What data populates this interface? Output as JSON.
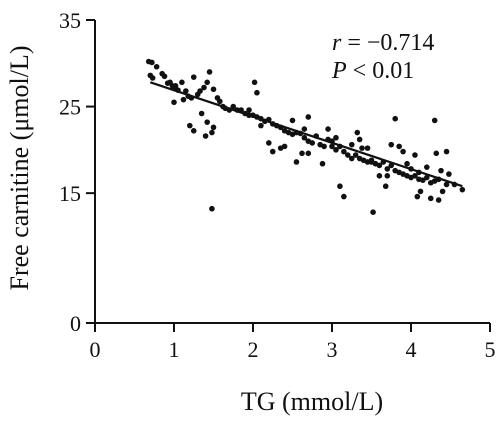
{
  "chart_data": {
    "type": "scatter",
    "title": "",
    "xlabel": "TG (mmol/L)",
    "ylabel": "Free carnitine (μmol/L)",
    "xlim": [
      0,
      5
    ],
    "ylim": [
      0,
      35
    ],
    "x_ticks": [
      "0",
      "1",
      "2",
      "3",
      "4",
      "5"
    ],
    "y_ticks": [
      "0",
      "15",
      "25",
      "35"
    ],
    "y_tick_values": [
      0,
      15,
      25,
      35
    ],
    "x_tick_values": [
      0,
      1,
      2,
      3,
      4,
      5
    ],
    "grid": false,
    "legend": "none",
    "annotations": {
      "r_symbol": "r",
      "r_text": " = −0.714",
      "p_symbol": "P",
      "p_text": " < 0.01"
    },
    "regression_line": {
      "x": [
        0.7,
        4.65
      ],
      "y": [
        27.8,
        15.8
      ]
    },
    "series": [
      {
        "points": [
          [
            0.68,
            30.2
          ],
          [
            0.72,
            30.1
          ],
          [
            0.78,
            29.6
          ],
          [
            0.7,
            28.6
          ],
          [
            0.73,
            28.3
          ],
          [
            0.85,
            28.8
          ],
          [
            0.88,
            28.5
          ],
          [
            0.92,
            27.7
          ],
          [
            0.95,
            27.8
          ],
          [
            0.98,
            27.4
          ],
          [
            1.0,
            27.1
          ],
          [
            1.02,
            27.4
          ],
          [
            1.05,
            26.9
          ],
          [
            1.1,
            27.8
          ],
          [
            1.15,
            26.8
          ],
          [
            1.18,
            26.2
          ],
          [
            1.22,
            26.0
          ],
          [
            1.25,
            28.4
          ],
          [
            1.3,
            26.4
          ],
          [
            1.33,
            26.8
          ],
          [
            1.38,
            27.2
          ],
          [
            1.42,
            27.8
          ],
          [
            1.45,
            29.0
          ],
          [
            1.5,
            27.0
          ],
          [
            1.55,
            26.0
          ],
          [
            1.58,
            25.6
          ],
          [
            1.62,
            25.0
          ],
          [
            1.65,
            24.8
          ],
          [
            1.7,
            24.6
          ],
          [
            1.75,
            25.0
          ],
          [
            1.8,
            24.6
          ],
          [
            1.85,
            24.6
          ],
          [
            1.9,
            24.2
          ],
          [
            1.95,
            24.0
          ],
          [
            2.0,
            24.0
          ],
          [
            2.02,
            27.8
          ],
          [
            2.05,
            26.6
          ],
          [
            2.1,
            23.6
          ],
          [
            2.15,
            23.3
          ],
          [
            2.2,
            23.5
          ],
          [
            2.25,
            23.0
          ],
          [
            2.3,
            22.8
          ],
          [
            2.35,
            22.6
          ],
          [
            2.4,
            22.2
          ],
          [
            2.45,
            22.0
          ],
          [
            2.5,
            21.8
          ],
          [
            2.55,
            22.0
          ],
          [
            2.6,
            21.9
          ],
          [
            2.62,
            19.6
          ],
          [
            2.65,
            21.4
          ],
          [
            2.7,
            21.0
          ],
          [
            2.75,
            20.8
          ],
          [
            2.8,
            21.6
          ],
          [
            2.85,
            20.6
          ],
          [
            2.9,
            20.4
          ],
          [
            2.95,
            21.2
          ],
          [
            3.0,
            20.4
          ],
          [
            3.05,
            20.0
          ],
          [
            3.1,
            20.4
          ],
          [
            3.15,
            19.8
          ],
          [
            3.2,
            19.4
          ],
          [
            3.25,
            19.0
          ],
          [
            3.3,
            19.4
          ],
          [
            3.35,
            19.0
          ],
          [
            3.4,
            18.8
          ],
          [
            3.45,
            18.6
          ],
          [
            3.5,
            18.8
          ],
          [
            3.55,
            18.4
          ],
          [
            3.6,
            18.2
          ],
          [
            3.65,
            18.6
          ],
          [
            3.7,
            17.8
          ],
          [
            3.75,
            18.2
          ],
          [
            3.8,
            17.6
          ],
          [
            3.85,
            17.4
          ],
          [
            3.9,
            17.2
          ],
          [
            3.95,
            17.0
          ],
          [
            4.0,
            16.8
          ],
          [
            4.05,
            17.0
          ],
          [
            4.1,
            16.6
          ],
          [
            4.15,
            16.5
          ],
          [
            4.2,
            16.8
          ],
          [
            4.25,
            16.2
          ],
          [
            4.3,
            16.4
          ],
          [
            4.35,
            16.6
          ],
          [
            4.45,
            16.0
          ],
          [
            4.55,
            16.0
          ],
          [
            4.65,
            15.4
          ],
          [
            1.0,
            25.5
          ],
          [
            1.12,
            25.8
          ],
          [
            1.35,
            24.2
          ],
          [
            1.42,
            23.2
          ],
          [
            1.48,
            22.0
          ],
          [
            1.5,
            22.6
          ],
          [
            1.4,
            21.6
          ],
          [
            1.2,
            22.8
          ],
          [
            1.25,
            22.2
          ],
          [
            1.48,
            13.2
          ],
          [
            1.95,
            24.6
          ],
          [
            2.05,
            23.8
          ],
          [
            2.1,
            22.8
          ],
          [
            2.2,
            20.8
          ],
          [
            2.35,
            20.2
          ],
          [
            2.4,
            20.4
          ],
          [
            2.25,
            19.8
          ],
          [
            2.5,
            23.4
          ],
          [
            2.55,
            18.6
          ],
          [
            2.7,
            23.8
          ],
          [
            2.65,
            22.4
          ],
          [
            2.7,
            19.6
          ],
          [
            2.88,
            18.4
          ],
          [
            2.95,
            22.4
          ],
          [
            3.0,
            21.0
          ],
          [
            3.05,
            21.4
          ],
          [
            3.1,
            15.8
          ],
          [
            3.15,
            14.6
          ],
          [
            3.25,
            20.6
          ],
          [
            3.35,
            21.2
          ],
          [
            3.32,
            22.0
          ],
          [
            3.38,
            20.2
          ],
          [
            3.45,
            20.2
          ],
          [
            3.5,
            18.6
          ],
          [
            3.52,
            12.8
          ],
          [
            3.6,
            17.0
          ],
          [
            3.68,
            15.8
          ],
          [
            3.75,
            20.6
          ],
          [
            3.8,
            23.6
          ],
          [
            3.85,
            20.4
          ],
          [
            3.9,
            19.8
          ],
          [
            3.95,
            18.4
          ],
          [
            4.0,
            17.8
          ],
          [
            4.05,
            19.4
          ],
          [
            4.08,
            14.6
          ],
          [
            4.12,
            15.2
          ],
          [
            4.2,
            18.0
          ],
          [
            4.25,
            14.4
          ],
          [
            4.3,
            23.4
          ],
          [
            4.32,
            19.6
          ],
          [
            4.35,
            14.2
          ],
          [
            4.4,
            15.2
          ],
          [
            4.45,
            19.8
          ],
          [
            4.48,
            17.2
          ],
          [
            4.38,
            17.6
          ],
          [
            4.1,
            17.4
          ],
          [
            3.7,
            17.0
          ]
        ]
      }
    ]
  }
}
